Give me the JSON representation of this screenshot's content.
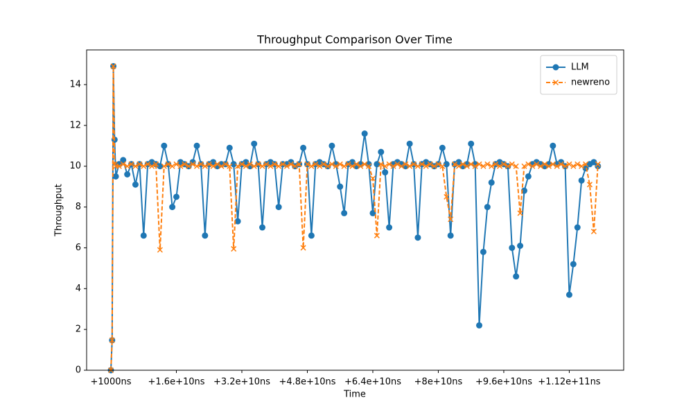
{
  "chart_data": {
    "type": "line",
    "title": "Throughput Comparison Over Time",
    "xlabel": "Time",
    "ylabel": "Throughput",
    "x": [
      1000,
      300000000.0,
      600000000.0,
      900000000.0,
      1200000000.0,
      2000000000.0,
      3000000000.0,
      4000000000.0,
      5000000000.0,
      6000000000.0,
      7000000000.0,
      8000000000.0,
      9000000000.0,
      10000000000.0,
      11000000000.0,
      12000000000.0,
      13000000000.0,
      14000000000.0,
      15000000000.0,
      16000000000.0,
      17000000000.0,
      18000000000.0,
      19000000000.0,
      20000000000.0,
      21000000000.0,
      22000000000.0,
      23000000000.0,
      24000000000.0,
      25000000000.0,
      26000000000.0,
      27000000000.0,
      28000000000.0,
      29000000000.0,
      30000000000.0,
      31000000000.0,
      32000000000.0,
      33000000000.0,
      34000000000.0,
      35000000000.0,
      36000000000.0,
      37000000000.0,
      38000000000.0,
      39000000000.0,
      40000000000.0,
      41000000000.0,
      42000000000.0,
      43000000000.0,
      44000000000.0,
      45000000000.0,
      46000000000.0,
      47000000000.0,
      48000000000.0,
      49000000000.0,
      50000000000.0,
      51000000000.0,
      52000000000.0,
      53000000000.0,
      54000000000.0,
      55000000000.0,
      56000000000.0,
      57000000000.0,
      58000000000.0,
      59000000000.0,
      60000000000.0,
      61000000000.0,
      62000000000.0,
      63000000000.0,
      64000000000.0,
      65000000000.0,
      66000000000.0,
      67000000000.0,
      68000000000.0,
      69000000000.0,
      70000000000.0,
      71000000000.0,
      72000000000.0,
      73000000000.0,
      74000000000.0,
      75000000000.0,
      76000000000.0,
      77000000000.0,
      78000000000.0,
      79000000000.0,
      80000000000.0,
      81000000000.0,
      82000000000.0,
      83000000000.0,
      84000000000.0,
      85000000000.0,
      86000000000.0,
      87000000000.0,
      88000000000.0,
      89000000000.0,
      90000000000.0,
      91000000000.0,
      92000000000.0,
      93000000000.0,
      94000000000.0,
      95000000000.0,
      96000000000.0,
      97000000000.0,
      98000000000.0,
      99000000000.0,
      100000000000.0,
      101000000000.0,
      102000000000.0,
      103000000000.0,
      104000000000.0,
      105000000000.0,
      106000000000.0,
      107000000000.0,
      108000000000.0,
      109000000000.0,
      110000000000.0,
      111000000000.0,
      112000000000.0,
      113000000000.0,
      114000000000.0,
      115000000000.0,
      116000000000.0,
      117000000000.0,
      118000000000.0,
      119000000000.0
    ],
    "series": [
      {
        "name": "LLM",
        "color": "#1f77b4",
        "marker": "o",
        "linestyle": "solid",
        "values": [
          0,
          1.47,
          14.9,
          11.3,
          9.5,
          10.1,
          10.3,
          9.6,
          10.1,
          9.1,
          10.1,
          6.6,
          10.1,
          10.2,
          10.1,
          10.0,
          11.0,
          10.1,
          8.0,
          8.5,
          10.2,
          10.1,
          10.0,
          10.2,
          11.0,
          10.1,
          6.6,
          10.1,
          10.2,
          10.0,
          10.1,
          10.1,
          10.9,
          10.1,
          7.3,
          10.1,
          10.2,
          10.0,
          11.1,
          10.1,
          7.0,
          10.1,
          10.2,
          10.1,
          8.0,
          10.1,
          10.1,
          10.2,
          10.0,
          10.1,
          10.9,
          10.1,
          6.6,
          10.1,
          10.2,
          10.1,
          10.0,
          11.0,
          10.1,
          9.0,
          7.7,
          10.1,
          10.2,
          10.0,
          10.1,
          11.6,
          10.1,
          7.7,
          10.1,
          10.7,
          9.7,
          7.0,
          10.1,
          10.2,
          10.1,
          10.0,
          11.1,
          10.1,
          6.5,
          10.1,
          10.2,
          10.1,
          10.0,
          10.1,
          10.9,
          10.1,
          6.6,
          10.1,
          10.2,
          10.0,
          10.1,
          11.1,
          10.1,
          2.2,
          5.8,
          8.0,
          9.2,
          10.1,
          10.2,
          10.1,
          10.0,
          6.0,
          4.6,
          6.1,
          8.8,
          9.5,
          10.1,
          10.2,
          10.1,
          10.0,
          10.1,
          11.0,
          10.1,
          10.2,
          10.0,
          3.7,
          5.2,
          7.0,
          9.3,
          9.9,
          10.1,
          10.2,
          10.0
        ]
      },
      {
        "name": "newreno",
        "color": "#ff7f0e",
        "marker": "x",
        "linestyle": "dashed",
        "values": [
          0,
          1.47,
          14.9,
          10.1,
          10.0,
          10.0,
          10.1,
          10.0,
          10.1,
          10.0,
          10.1,
          10.0,
          10.1,
          10.0,
          10.1,
          5.9,
          10.0,
          10.1,
          10.0,
          10.1,
          10.0,
          10.1,
          10.0,
          10.1,
          10.0,
          10.1,
          10.0,
          10.1,
          10.0,
          10.1,
          10.0,
          10.1,
          10.0,
          5.95,
          10.0,
          10.1,
          10.0,
          10.1,
          10.0,
          10.1,
          10.0,
          10.1,
          10.0,
          10.1,
          10.0,
          10.1,
          10.0,
          10.1,
          10.0,
          10.1,
          6.0,
          10.1,
          10.0,
          10.1,
          10.0,
          10.1,
          10.0,
          10.1,
          10.0,
          10.1,
          10.0,
          10.1,
          10.0,
          10.1,
          10.0,
          10.1,
          10.0,
          9.4,
          6.6,
          10.1,
          10.0,
          10.1,
          10.0,
          10.1,
          10.0,
          10.1,
          10.0,
          10.1,
          10.0,
          10.1,
          10.0,
          10.1,
          10.0,
          10.1,
          10.0,
          8.5,
          7.4,
          10.1,
          10.0,
          10.1,
          10.0,
          10.1,
          10.0,
          10.1,
          10.0,
          10.1,
          10.0,
          10.1,
          10.0,
          10.1,
          10.0,
          10.1,
          10.0,
          7.7,
          10.0,
          10.1,
          10.0,
          10.1,
          10.0,
          10.1,
          10.0,
          10.1,
          10.0,
          10.1,
          10.0,
          10.1,
          10.0,
          10.1,
          10.0,
          10.1,
          9.1,
          6.8,
          10.1
        ]
      }
    ],
    "xlim": [
      -5930000000.0,
      125300000000.0
    ],
    "xticks": [
      {
        "value": 1000,
        "label": "+1000ns"
      },
      {
        "value": 16000000000.0,
        "label": "+1.6e+10ns"
      },
      {
        "value": 32000000000.0,
        "label": "+3.2e+10ns"
      },
      {
        "value": 48000000000.0,
        "label": "+4.8e+10ns"
      },
      {
        "value": 64000000000.0,
        "label": "+6.4e+10ns"
      },
      {
        "value": 80000000000.0,
        "label": "+8e+10ns"
      },
      {
        "value": 96000000000.0,
        "label": "+9.6e+10ns"
      },
      {
        "value": 112000000000.0,
        "label": "+1.12e+11ns"
      }
    ],
    "ylim": [
      0,
      15.7
    ],
    "yticks": [
      0,
      2,
      4,
      6,
      8,
      10,
      12,
      14
    ],
    "grid": false,
    "legend": "upper right"
  }
}
